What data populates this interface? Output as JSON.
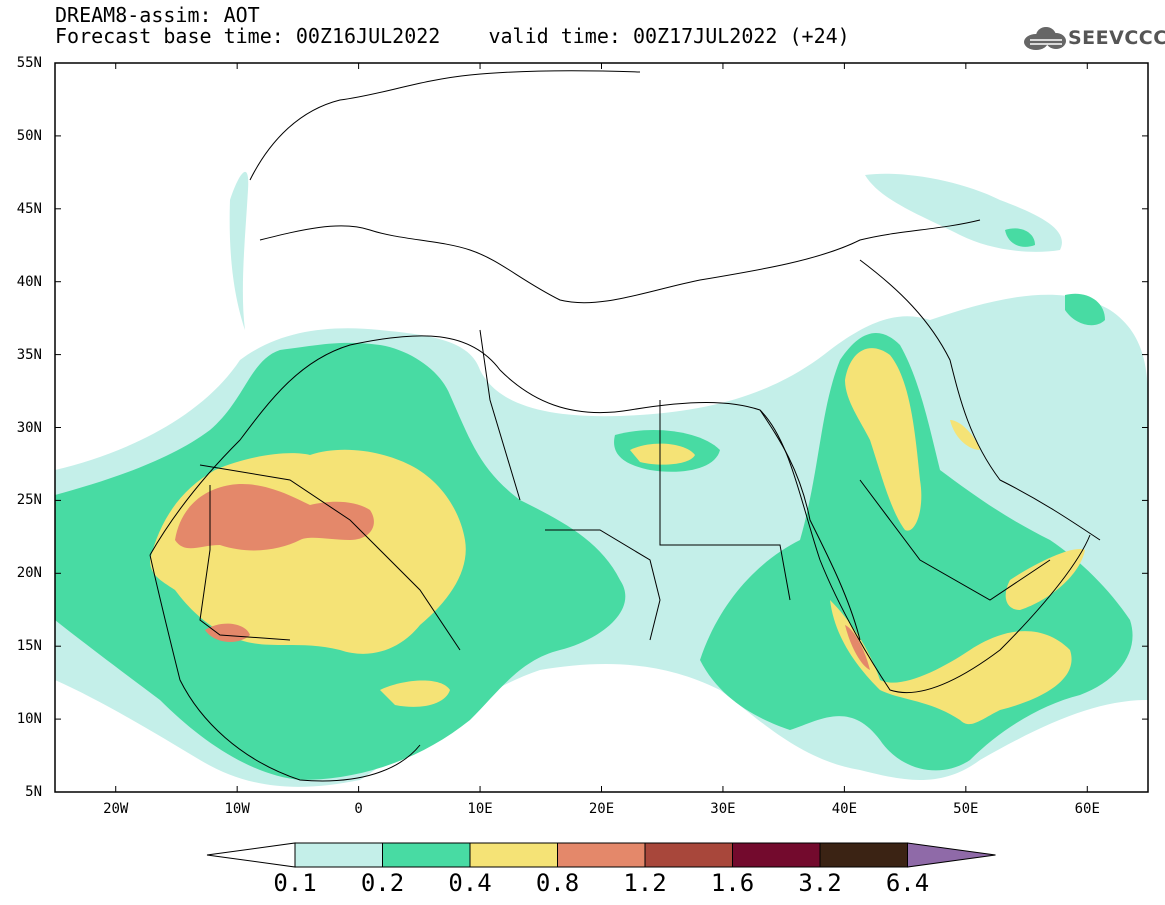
{
  "header": {
    "title_line1": "DREAM8-assim: AOT",
    "title_line2": "Forecast base time: 00Z16JUL2022    valid time: 00Z17JUL2022 (+24)"
  },
  "logo": {
    "text": "SEEVCCC",
    "icon": "cloud-icon"
  },
  "axes": {
    "lat_labels": [
      "55N",
      "50N",
      "45N",
      "40N",
      "35N",
      "30N",
      "25N",
      "20N",
      "15N",
      "10N",
      "5N"
    ],
    "lon_labels": [
      "20W",
      "10W",
      "0",
      "10E",
      "20E",
      "30E",
      "40E",
      "50E",
      "60E"
    ],
    "lat_range": [
      5,
      55
    ],
    "lon_range": [
      -25,
      65
    ]
  },
  "legend": {
    "levels": [
      "0.1",
      "0.2",
      "0.4",
      "0.8",
      "1.2",
      "1.6",
      "3.2",
      "6.4"
    ],
    "colors": [
      "#ffffff",
      "#c4efe9",
      "#48dba3",
      "#f5e376",
      "#e4886a",
      "#a8473b",
      "#730a2d",
      "#3b2314",
      "#8f6aa8"
    ]
  }
}
